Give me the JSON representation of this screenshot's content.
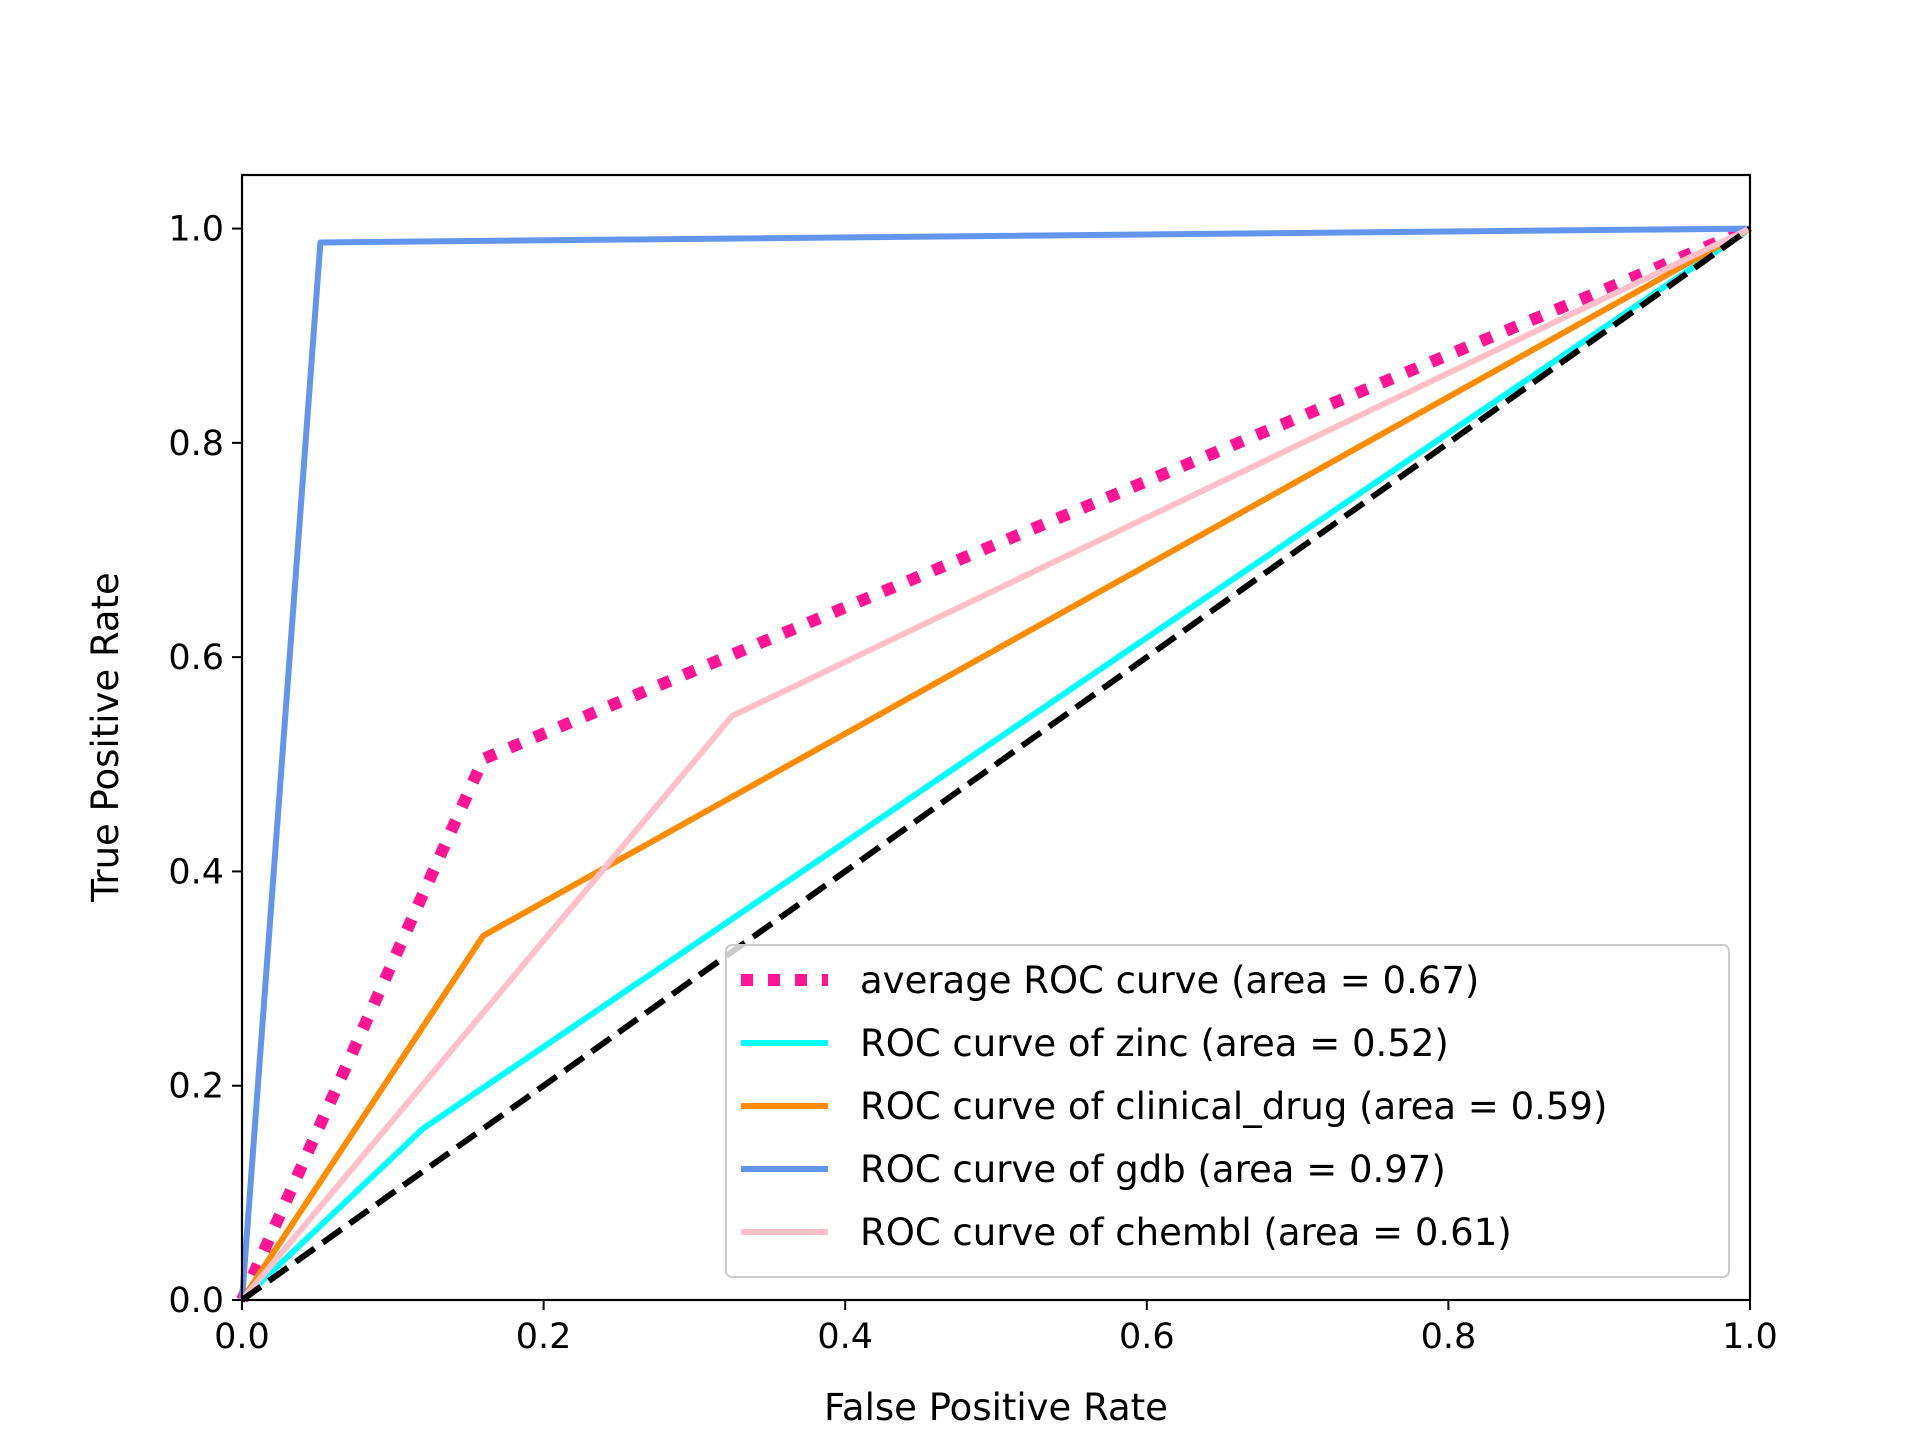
{
  "chart_data": {
    "type": "line",
    "title": "",
    "xlabel": "False Positive Rate",
    "ylabel": "True Positive Rate",
    "xlim": [
      0.0,
      1.0
    ],
    "ylim": [
      0.0,
      1.05
    ],
    "xticks": [
      "0.0",
      "0.2",
      "0.4",
      "0.6",
      "0.8",
      "1.0"
    ],
    "yticks": [
      "0.0",
      "0.2",
      "0.4",
      "0.6",
      "0.8",
      "1.0"
    ],
    "grid": false,
    "legend_position": "lower-right",
    "series": [
      {
        "name": "average ROC curve (area = 0.67)",
        "color": "#ff1493",
        "style": "dotted",
        "x": [
          0.0,
          0.16,
          1.0
        ],
        "y": [
          0.0,
          0.505,
          1.0
        ]
      },
      {
        "name": "ROC curve of zinc (area = 0.52)",
        "color": "#00ffff",
        "style": "solid",
        "x": [
          0.0,
          0.12,
          1.0
        ],
        "y": [
          0.0,
          0.16,
          1.0
        ]
      },
      {
        "name": "ROC curve of clinical_drug (area = 0.59)",
        "color": "#ff8c00",
        "style": "solid",
        "x": [
          0.0,
          0.16,
          1.0
        ],
        "y": [
          0.0,
          0.34,
          1.0
        ]
      },
      {
        "name": "ROC curve of gdb (area = 0.97)",
        "color": "#6495ed",
        "style": "solid",
        "x": [
          0.0,
          0.052,
          1.0
        ],
        "y": [
          0.0,
          0.987,
          1.0
        ]
      },
      {
        "name": "ROC curve of chembl (area = 0.61)",
        "color": "#ffc0cb",
        "style": "solid",
        "x": [
          0.0,
          0.325,
          1.0
        ],
        "y": [
          0.0,
          0.545,
          1.0
        ]
      }
    ],
    "reference_line": {
      "color": "#000000",
      "style": "dashed",
      "x": [
        0.0,
        1.0
      ],
      "y": [
        0.0,
        1.0
      ]
    }
  }
}
